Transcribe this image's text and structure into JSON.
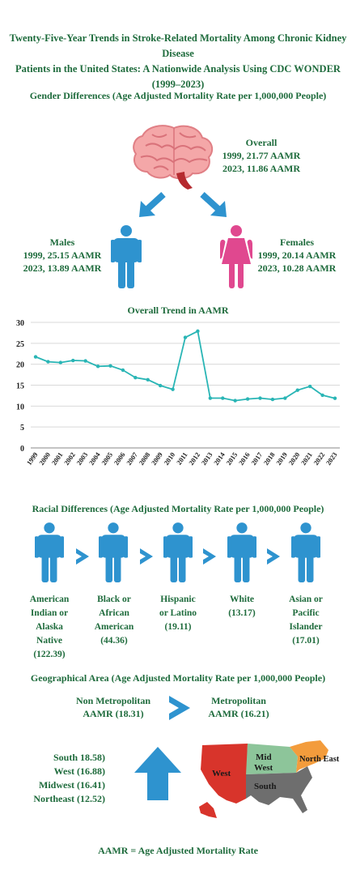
{
  "title_line1": "Twenty-Five-Year Trends in Stroke-Related Mortality Among Chronic Kidney Disease",
  "title_line2": "Patients in the United States: A Nationwide Analysis Using CDC WONDER (1999–2023)",
  "gender": {
    "heading": "Gender Differences (Age Adjusted Mortality Rate per 1,000,000 People)",
    "overall": {
      "label": "Overall",
      "line1": "1999, 21.77 AAMR",
      "line2": "2023, 11.86 AAMR"
    },
    "males": {
      "label": "Males",
      "line1": "1999, 25.15 AAMR",
      "line2": "2023, 13.89 AAMR"
    },
    "females": {
      "label": "Females",
      "line1": "1999, 20.14 AAMR",
      "line2": "2023, 10.28 AAMR"
    }
  },
  "chart_data": {
    "type": "line",
    "title": "Overall Trend in AAMR",
    "xlabel": "",
    "ylabel": "",
    "categories": [
      "1999",
      "2000",
      "2001",
      "2002",
      "2003",
      "2004",
      "2005",
      "2006",
      "2007",
      "2008",
      "2009",
      "2010",
      "2011",
      "2012",
      "2013",
      "2014",
      "2015",
      "2016",
      "2017",
      "2018",
      "2019",
      "2020",
      "2021",
      "2022",
      "2023"
    ],
    "values": [
      21.77,
      20.6,
      20.4,
      20.9,
      20.8,
      19.5,
      19.6,
      18.6,
      16.8,
      16.3,
      14.9,
      14.0,
      26.4,
      27.9,
      11.9,
      11.9,
      11.3,
      11.7,
      11.9,
      11.6,
      11.9,
      13.8,
      14.7,
      12.6,
      11.86
    ],
    "ylim": [
      0,
      30
    ],
    "yticks": [
      "0",
      "5",
      "10",
      "15",
      "20",
      "25",
      "30"
    ],
    "grid": true,
    "line_color": "#29b5b5"
  },
  "race": {
    "heading": "Racial Differences (Age Adjusted Mortality Rate per 1,000,000 People)",
    "groups": [
      {
        "lines": [
          "American",
          "Indian or",
          "Alaska",
          "Native",
          "(122.39)"
        ]
      },
      {
        "lines": [
          "Black or",
          "African",
          "American",
          "(44.36)"
        ]
      },
      {
        "lines": [
          "Hispanic",
          "or Latino",
          "(19.11)"
        ]
      },
      {
        "lines": [
          "White",
          "(13.17)"
        ]
      },
      {
        "lines": [
          "Asian or",
          "Pacific",
          "Islander",
          "(17.01)"
        ]
      }
    ]
  },
  "geo": {
    "heading": "Geographical Area (Age Adjusted Mortality Rate per 1,000,000 People)",
    "nonmetro": {
      "line1": "Non Metropolitan",
      "line2": "AAMR (18.31)"
    },
    "metro": {
      "line1": "Metropolitan",
      "line2": "AAMR (16.21)"
    },
    "regions": [
      "South 18.58)",
      "West (16.88)",
      "Midwest (16.41)",
      "Northeast (12.52)"
    ],
    "map_labels": {
      "west": "West",
      "midwest1": "Mid",
      "midwest2": "West",
      "northeast": "North East",
      "south": "South"
    }
  },
  "footnote": "AAMR = Age Adjusted Mortality Rate",
  "colors": {
    "text": "#1e6b3c",
    "person_blue": "#2e93cf",
    "person_pink": "#e0488f",
    "arrow_blue": "#2e93cf",
    "brain": "#f4a7a8",
    "west": "#d8342b",
    "midwest": "#8dc59a",
    "northeast": "#f39c3c",
    "south": "#6e6e6e"
  }
}
